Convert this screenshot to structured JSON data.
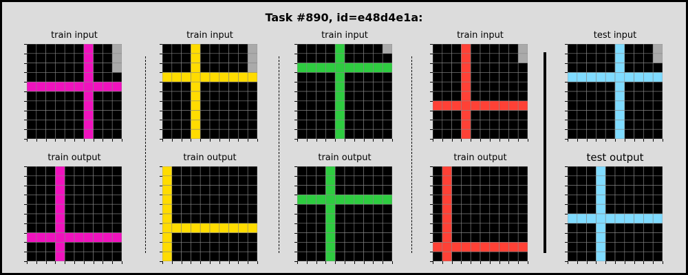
{
  "title": "Task #890, id=e48d4e1a:",
  "colors": {
    "background": "#000000",
    "grid_line": "#888888",
    "gray": "#aaaaaa",
    "magenta": "#f012be",
    "yellow": "#ffdc00",
    "green": "#2ecc40",
    "red": "#ff4136",
    "cyan": "#7fdbff"
  },
  "panels": [
    {
      "label": "train input",
      "color": "magenta",
      "row": 4,
      "col": 6,
      "gray": 3
    },
    {
      "label": "train output",
      "color": "magenta",
      "row": 7,
      "col": 3,
      "gray": 0
    },
    {
      "label": "train input",
      "color": "yellow",
      "row": 3,
      "col": 3,
      "gray": 3
    },
    {
      "label": "train output",
      "color": "yellow",
      "row": 6,
      "col": 0,
      "gray": 0
    },
    {
      "label": "train input",
      "color": "green",
      "row": 2,
      "col": 4,
      "gray": 1
    },
    {
      "label": "train output",
      "color": "green",
      "row": 3,
      "col": 3,
      "gray": 0
    },
    {
      "label": "train input",
      "color": "red",
      "row": 6,
      "col": 3,
      "gray": 2
    },
    {
      "label": "train output",
      "color": "red",
      "row": 8,
      "col": 1,
      "gray": 0
    },
    {
      "label": "test input",
      "color": "cyan",
      "row": 3,
      "col": 5,
      "gray": 2
    },
    {
      "label": "test output",
      "color": "cyan",
      "row": 5,
      "col": 3,
      "gray": 0
    }
  ]
}
